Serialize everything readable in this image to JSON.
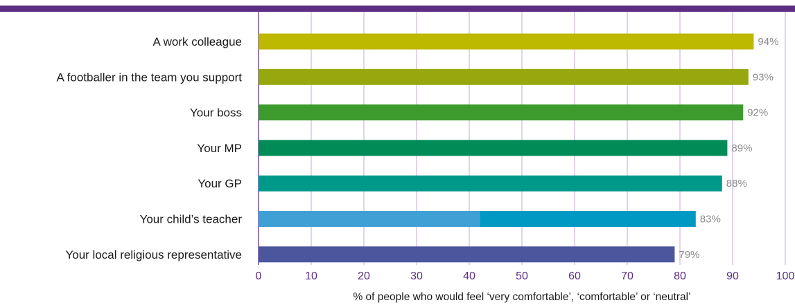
{
  "chart_data": {
    "type": "bar",
    "orientation": "horizontal",
    "categories": [
      "A work colleague",
      "A footballer in the team you support",
      "Your boss",
      "Your MP",
      "Your GP",
      "Your child’s teacher",
      "Your local religious representative"
    ],
    "values": [
      94,
      93,
      92,
      89,
      88,
      83,
      79
    ],
    "value_labels": [
      "94%",
      "93%",
      "92%",
      "89%",
      "88%",
      "83%",
      "79%"
    ],
    "bar_colors": [
      "#bdb800",
      "#96a80e",
      "#3c9b2c",
      "#008b57",
      "#00998a",
      "#0099c4",
      "#4c569d"
    ],
    "split_bar": {
      "index": 5,
      "at": 42,
      "color": "#3fa0d6"
    },
    "xlabel": "% of people who would feel ‘very comfortable’, ‘comfortable’ or ‘neutral’",
    "xlim": [
      0,
      100
    ],
    "xticks": [
      0,
      10,
      20,
      30,
      40,
      50,
      60,
      70,
      80,
      90,
      100
    ],
    "xtick_labels": [
      "0",
      "10",
      "20",
      "30",
      "40",
      "50",
      "60",
      "70",
      "80",
      "90",
      "100"
    ],
    "grid": true,
    "colors": {
      "accent": "#5c2d83",
      "gridline": "#cdb8dd",
      "axis": "#7b4fa0",
      "value_label": "#8a8a8a"
    }
  }
}
